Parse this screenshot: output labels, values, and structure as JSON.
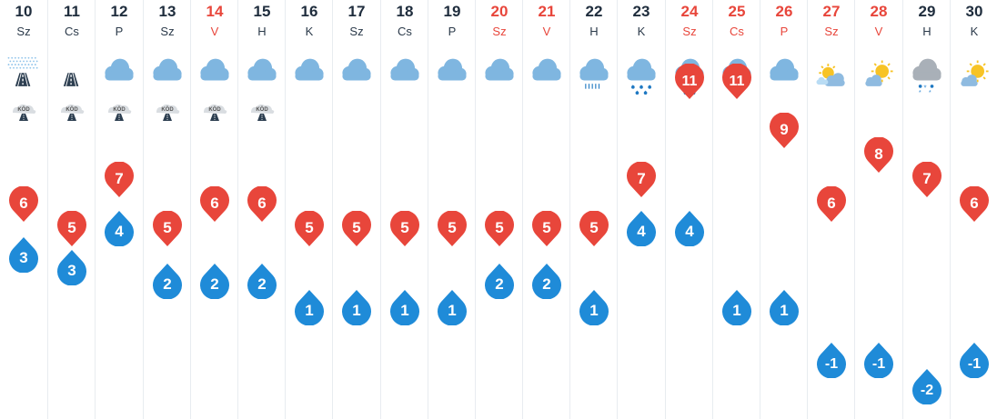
{
  "forecast": {
    "days": [
      {
        "date": "10",
        "weekday": "Sz",
        "weekend": false,
        "icon": "fog-road-icon",
        "fog": "KÖD",
        "max": "6",
        "min": "3"
      },
      {
        "date": "11",
        "weekday": "Cs",
        "weekend": false,
        "icon": "road-icon",
        "fog": "KÖD",
        "max": "5",
        "min": "3"
      },
      {
        "date": "12",
        "weekday": "P",
        "weekend": false,
        "icon": "cloud-icon",
        "fog": "KÖD",
        "max": "7",
        "min": "4"
      },
      {
        "date": "13",
        "weekday": "Sz",
        "weekend": false,
        "icon": "cloud-icon",
        "fog": "KÖD",
        "max": "5",
        "min": "2"
      },
      {
        "date": "14",
        "weekday": "V",
        "weekend": true,
        "icon": "cloud-icon",
        "fog": "KÖD",
        "max": "6",
        "min": "2"
      },
      {
        "date": "15",
        "weekday": "H",
        "weekend": false,
        "icon": "cloud-icon",
        "fog": "KÖD",
        "max": "6",
        "min": "2"
      },
      {
        "date": "16",
        "weekday": "K",
        "weekend": false,
        "icon": "cloud-icon",
        "fog": null,
        "max": "5",
        "min": "1"
      },
      {
        "date": "17",
        "weekday": "Sz",
        "weekend": false,
        "icon": "cloud-icon",
        "fog": null,
        "max": "5",
        "min": "1"
      },
      {
        "date": "18",
        "weekday": "Cs",
        "weekend": false,
        "icon": "cloud-icon",
        "fog": null,
        "max": "5",
        "min": "1"
      },
      {
        "date": "19",
        "weekday": "P",
        "weekend": false,
        "icon": "cloud-icon",
        "fog": null,
        "max": "5",
        "min": "1"
      },
      {
        "date": "20",
        "weekday": "Sz",
        "weekend": true,
        "icon": "cloud-icon",
        "fog": null,
        "max": "5",
        "min": "2"
      },
      {
        "date": "21",
        "weekday": "V",
        "weekend": true,
        "icon": "cloud-icon",
        "fog": null,
        "max": "5",
        "min": "2"
      },
      {
        "date": "22",
        "weekday": "H",
        "weekend": false,
        "icon": "cloud-rain-light-icon",
        "fog": null,
        "max": "5",
        "min": "1"
      },
      {
        "date": "23",
        "weekday": "K",
        "weekend": false,
        "icon": "cloud-rain-heavy-icon",
        "fog": null,
        "max": "7",
        "min": "4"
      },
      {
        "date": "24",
        "weekday": "Sz",
        "weekend": true,
        "icon": "cloud-rain-heavy-icon",
        "fog": null,
        "max": "11",
        "min": "4"
      },
      {
        "date": "25",
        "weekday": "Cs",
        "weekend": true,
        "icon": "cloud-rain-light-icon",
        "fog": null,
        "max": "11",
        "min": "1"
      },
      {
        "date": "26",
        "weekday": "P",
        "weekend": true,
        "icon": "cloud-icon",
        "fog": null,
        "max": "9",
        "min": "1"
      },
      {
        "date": "27",
        "weekday": "Sz",
        "weekend": true,
        "icon": "partly-cloudy-icon",
        "fog": null,
        "max": "6",
        "min": "-1"
      },
      {
        "date": "28",
        "weekday": "V",
        "weekend": true,
        "icon": "mostly-sunny-icon",
        "fog": null,
        "max": "8",
        "min": "-1"
      },
      {
        "date": "29",
        "weekday": "H",
        "weekend": false,
        "icon": "cloud-sleet-icon",
        "fog": null,
        "max": "7",
        "min": "-2"
      },
      {
        "date": "30",
        "weekday": "K",
        "weekend": false,
        "icon": "mostly-sunny-icon",
        "fog": null,
        "max": "6",
        "min": "-1"
      }
    ]
  },
  "colors": {
    "max_marker": "#e8463b",
    "min_marker": "#1f8bd8",
    "weekend_text": "#e8463b",
    "cloud_light": "#b9dcf4",
    "cloud_dark": "#7fb6e0",
    "sun": "#f7c325"
  }
}
